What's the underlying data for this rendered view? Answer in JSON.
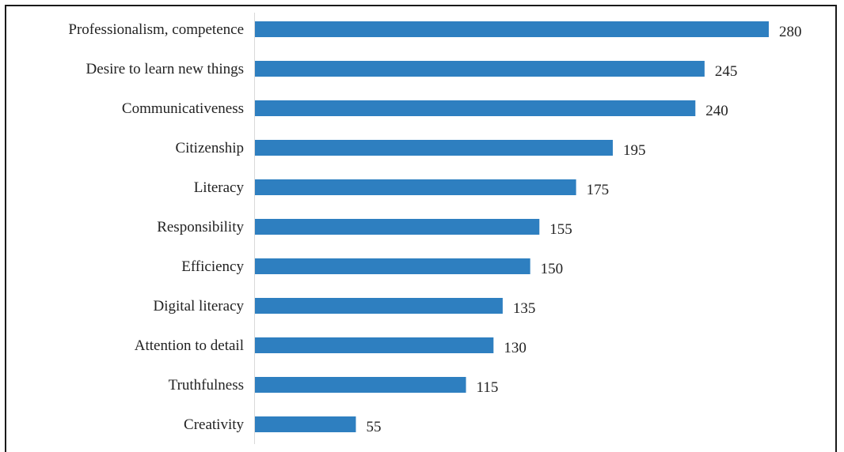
{
  "chart_data": {
    "type": "bar",
    "orientation": "horizontal",
    "title": "",
    "xlabel": "",
    "ylabel": "",
    "categories": [
      "Professionalism, competence",
      "Desire to learn new things",
      "Communicativeness",
      "Citizenship",
      "Literacy",
      "Responsibility",
      "Efficiency",
      "Digital literacy",
      "Attention to detail",
      "Truthfulness",
      "Creativity"
    ],
    "values": [
      280,
      245,
      240,
      195,
      175,
      155,
      150,
      135,
      130,
      115,
      55
    ],
    "xlim": [
      0,
      280
    ],
    "grid": false,
    "legend": "none",
    "data_labels": true,
    "bar_color": "#2e7fc0"
  }
}
